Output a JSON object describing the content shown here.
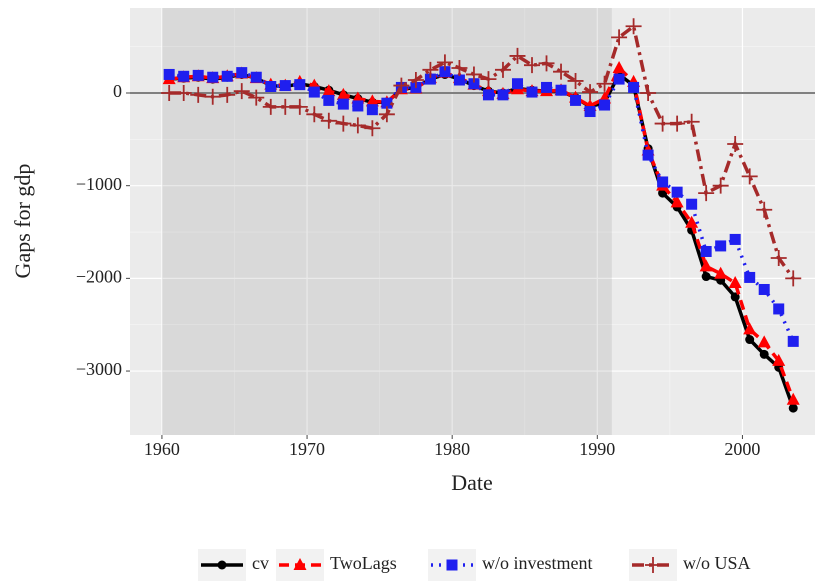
{
  "chart_data": {
    "type": "line",
    "xlabel": "Date",
    "ylabel": "Gaps  for gdp",
    "xlim": [
      1957.8,
      2005.0
    ],
    "ylim": [
      -3690,
      917
    ],
    "xticks": [
      1960,
      1970,
      1980,
      1990,
      2000
    ],
    "yticks": [
      {
        "value": -3000,
        "label": "−3000"
      },
      {
        "value": -2000,
        "label": "−2000"
      },
      {
        "value": -1000,
        "label": "−1000"
      },
      0
    ],
    "xminor": [
      1965,
      1975,
      1985,
      1995
    ],
    "yminor": [
      -2500,
      -1500,
      -500,
      500
    ],
    "grid": true,
    "shaded_x": [
      1960,
      1991
    ],
    "hline": 0,
    "legend": "bottom",
    "x": [
      1960.5,
      1961.5,
      1962.5,
      1963.5,
      1964.5,
      1965.5,
      1966.5,
      1967.5,
      1968.5,
      1969.5,
      1970.5,
      1971.5,
      1972.5,
      1973.5,
      1974.5,
      1975.5,
      1976.5,
      1977.5,
      1978.5,
      1979.5,
      1980.5,
      1981.5,
      1982.5,
      1983.5,
      1984.5,
      1985.5,
      1986.5,
      1987.5,
      1988.5,
      1989.5,
      1990.5,
      1991.5,
      1992.5,
      1993.5,
      1994.5,
      1995.5,
      1996.5,
      1997.5,
      1998.5,
      1999.5,
      2000.5,
      2001.5,
      2002.5,
      2003.5
    ],
    "series": [
      {
        "name": "cv",
        "color": "#000000",
        "marker": "circle",
        "dash": "solid",
        "values": [
          150,
          160,
          170,
          150,
          170,
          200,
          160,
          80,
          70,
          100,
          70,
          30,
          -20,
          -60,
          -100,
          -100,
          40,
          60,
          150,
          200,
          150,
          80,
          20,
          0,
          50,
          30,
          20,
          20,
          -50,
          -150,
          -100,
          200,
          80,
          -600,
          -1080,
          -1230,
          -1480,
          -1980,
          -2020,
          -2200,
          -2660,
          -2820,
          -2960,
          -3400
        ]
      },
      {
        "name": "TwoLags",
        "color": "#ff0000",
        "marker": "triangle",
        "dash": "dashed",
        "values": [
          150,
          170,
          180,
          160,
          180,
          210,
          160,
          90,
          80,
          120,
          80,
          20,
          -20,
          -60,
          -90,
          -100,
          40,
          50,
          160,
          220,
          160,
          90,
          20,
          -10,
          40,
          20,
          20,
          30,
          -50,
          -140,
          -60,
          270,
          120,
          -620,
          -1000,
          -1180,
          -1400,
          -1870,
          -1950,
          -2050,
          -2550,
          -2690,
          -2890,
          -3310
        ]
      },
      {
        "name": "w/o investment",
        "color": "#1f1fef",
        "marker": "square",
        "dash": "dotted",
        "values": [
          200,
          180,
          190,
          170,
          180,
          220,
          170,
          70,
          80,
          90,
          10,
          -80,
          -120,
          -140,
          -180,
          -110,
          60,
          60,
          150,
          230,
          140,
          100,
          -20,
          -20,
          100,
          10,
          60,
          30,
          -80,
          -200,
          -130,
          150,
          60,
          -670,
          -960,
          -1070,
          -1200,
          -1710,
          -1650,
          -1580,
          -1990,
          -2120,
          -2330,
          -2680
        ]
      },
      {
        "name": "w/o USA",
        "color": "#a52a2a",
        "marker": "plus",
        "dash": "dotdash",
        "values": [
          0,
          0,
          -20,
          -40,
          -20,
          20,
          -50,
          -150,
          -150,
          -150,
          -230,
          -300,
          -330,
          -350,
          -380,
          -230,
          80,
          140,
          250,
          330,
          270,
          200,
          150,
          250,
          400,
          300,
          320,
          230,
          130,
          10,
          100,
          600,
          720,
          0,
          -330,
          -330,
          -310,
          -1080,
          -1000,
          -550,
          -900,
          -1260,
          -1780,
          -2000
        ]
      }
    ]
  }
}
